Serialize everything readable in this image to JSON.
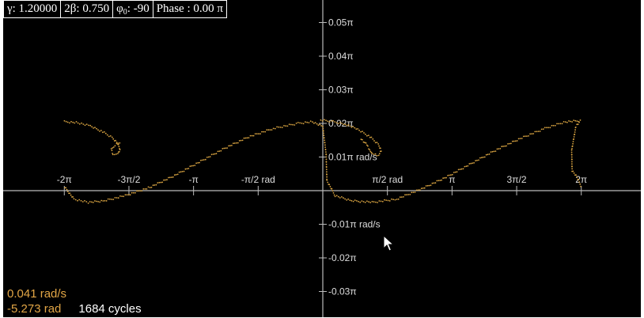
{
  "params": {
    "gamma_label": "γ:",
    "gamma_value": "1.20000",
    "beta_label": "2β:",
    "beta_value": "0.750",
    "phi0_label": "φ",
    "phi0_sub": "0",
    "phi0_value": ": -90",
    "phase_label": "Phase :",
    "phase_value": "0.00 π"
  },
  "readout": {
    "velocity": "0.041 rad/s",
    "angle": "-5.273 rad",
    "cycles": "1684 cycles"
  },
  "colors": {
    "background": "#000000",
    "axis": "#bbbbbb",
    "tick_text": "#dddddd",
    "attractor": "#d9a441",
    "readout": "#e2a646",
    "border": "#ffffff"
  },
  "chart_data": {
    "type": "scatter",
    "title": "",
    "xlabel": "rad",
    "ylabel": "rad/s",
    "xlim": [
      -6.6,
      7.0
    ],
    "ylim": [
      -0.037,
      0.057
    ],
    "y_scale_unit": "π",
    "x_ticks": [
      {
        "value": -6.2832,
        "label": "-2π"
      },
      {
        "value": -4.7124,
        "label": "-3π/2"
      },
      {
        "value": -3.1416,
        "label": "-π"
      },
      {
        "value": -1.5708,
        "label": "-π/2 rad"
      },
      {
        "value": 1.5708,
        "label": "π/2 rad"
      },
      {
        "value": 3.1416,
        "label": "π"
      },
      {
        "value": 4.7124,
        "label": "3π/2"
      },
      {
        "value": 6.2832,
        "label": "2π"
      }
    ],
    "y_ticks": [
      {
        "value": 0.05,
        "label": "0.05π"
      },
      {
        "value": 0.04,
        "label": "0.04π"
      },
      {
        "value": 0.03,
        "label": "0.03π"
      },
      {
        "value": 0.02,
        "label": "0.02π"
      },
      {
        "value": 0.01,
        "label": "0.01π rad/s"
      },
      {
        "value": -0.01,
        "label": "-0.01π rad/s"
      },
      {
        "value": -0.02,
        "label": "-0.02π"
      },
      {
        "value": -0.03,
        "label": "-0.03π"
      }
    ],
    "series": [
      {
        "values": [
          [
            -6.28,
            0.0205
          ],
          [
            -5.95,
            0.0202
          ],
          [
            -5.65,
            0.0192
          ],
          [
            -5.35,
            0.0175
          ],
          [
            -5.12,
            0.0158
          ],
          [
            -4.98,
            0.014
          ],
          [
            -4.93,
            0.0122
          ],
          [
            -4.98,
            0.0108
          ],
          [
            -5.1,
            0.0108
          ],
          [
            -5.14,
            0.0123
          ],
          [
            -5.05,
            0.0135
          ],
          [
            -4.9,
            0.0145
          ]
        ]
      },
      {
        "values": [
          [
            -6.27,
            0.001
          ],
          [
            -6.05,
            -0.0025
          ],
          [
            -5.7,
            -0.0035
          ],
          [
            -5.3,
            -0.003
          ],
          [
            -4.8,
            -0.0015
          ],
          [
            -4.2,
            0.001
          ],
          [
            -3.6,
            0.0045
          ],
          [
            -3.0,
            0.0085
          ],
          [
            -2.4,
            0.0125
          ],
          [
            -1.8,
            0.016
          ],
          [
            -1.2,
            0.0185
          ],
          [
            -0.6,
            0.02
          ],
          [
            -0.25,
            0.0205
          ],
          [
            0.0,
            0.019
          ],
          [
            0.08,
            0.011
          ],
          [
            0.1,
            0.003
          ],
          [
            0.3,
            -0.0015
          ],
          [
            0.7,
            -0.003
          ],
          [
            1.2,
            -0.0035
          ],
          [
            1.8,
            -0.0025
          ],
          [
            2.4,
            0.0005
          ],
          [
            3.0,
            0.004
          ],
          [
            3.6,
            0.008
          ],
          [
            4.2,
            0.012
          ],
          [
            4.8,
            0.0155
          ],
          [
            5.4,
            0.0185
          ],
          [
            5.9,
            0.0205
          ],
          [
            6.26,
            0.0208
          ],
          [
            6.15,
            0.019
          ],
          [
            6.05,
            0.012
          ],
          [
            6.06,
            0.006
          ],
          [
            6.18,
            0.004
          ],
          [
            6.29,
            0.001
          ]
        ]
      },
      {
        "values": [
          [
            -0.05,
            0.021
          ],
          [
            0.25,
            0.0205
          ],
          [
            0.55,
            0.0198
          ],
          [
            0.85,
            0.0182
          ],
          [
            1.15,
            0.016
          ],
          [
            1.35,
            0.0138
          ],
          [
            1.42,
            0.012
          ],
          [
            1.36,
            0.0105
          ],
          [
            1.2,
            0.0108
          ],
          [
            1.14,
            0.0122
          ],
          [
            1.05,
            0.014
          ],
          [
            0.9,
            0.0155
          ]
        ]
      }
    ]
  }
}
